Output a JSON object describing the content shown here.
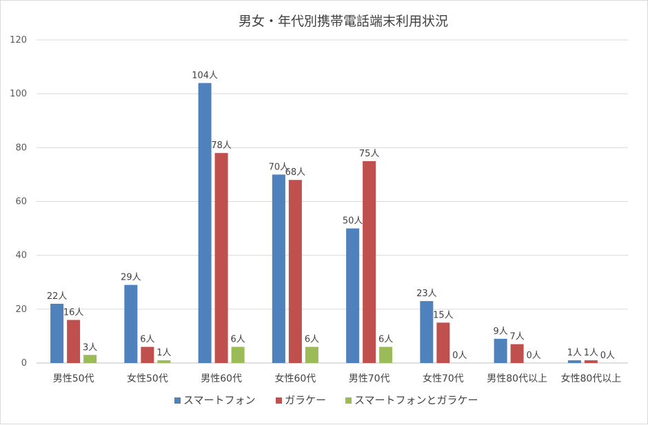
{
  "chart_data": {
    "type": "bar",
    "title": "男女・年代別携帯電話端末利用状況",
    "xlabel": "",
    "ylabel": "",
    "ylim": [
      0,
      120
    ],
    "yticks": [
      0,
      20,
      40,
      60,
      80,
      100,
      120
    ],
    "grid": true,
    "legend_position": "bottom",
    "unit_suffix": "人",
    "categories": [
      "男性50代",
      "女性50代",
      "男性60代",
      "女性60代",
      "男性70代",
      "女性70代",
      "男性80代以上",
      "女性80代以上"
    ],
    "series": [
      {
        "name": "スマートフォン",
        "color": "#4f81bd",
        "values": [
          22,
          29,
          104,
          70,
          50,
          23,
          9,
          1
        ]
      },
      {
        "name": "ガラケー",
        "color": "#c0504d",
        "values": [
          16,
          6,
          78,
          68,
          75,
          15,
          7,
          1
        ]
      },
      {
        "name": "スマートフォンとガラケー",
        "color": "#9bbb59",
        "values": [
          3,
          1,
          6,
          6,
          6,
          0,
          0,
          0
        ]
      }
    ]
  }
}
